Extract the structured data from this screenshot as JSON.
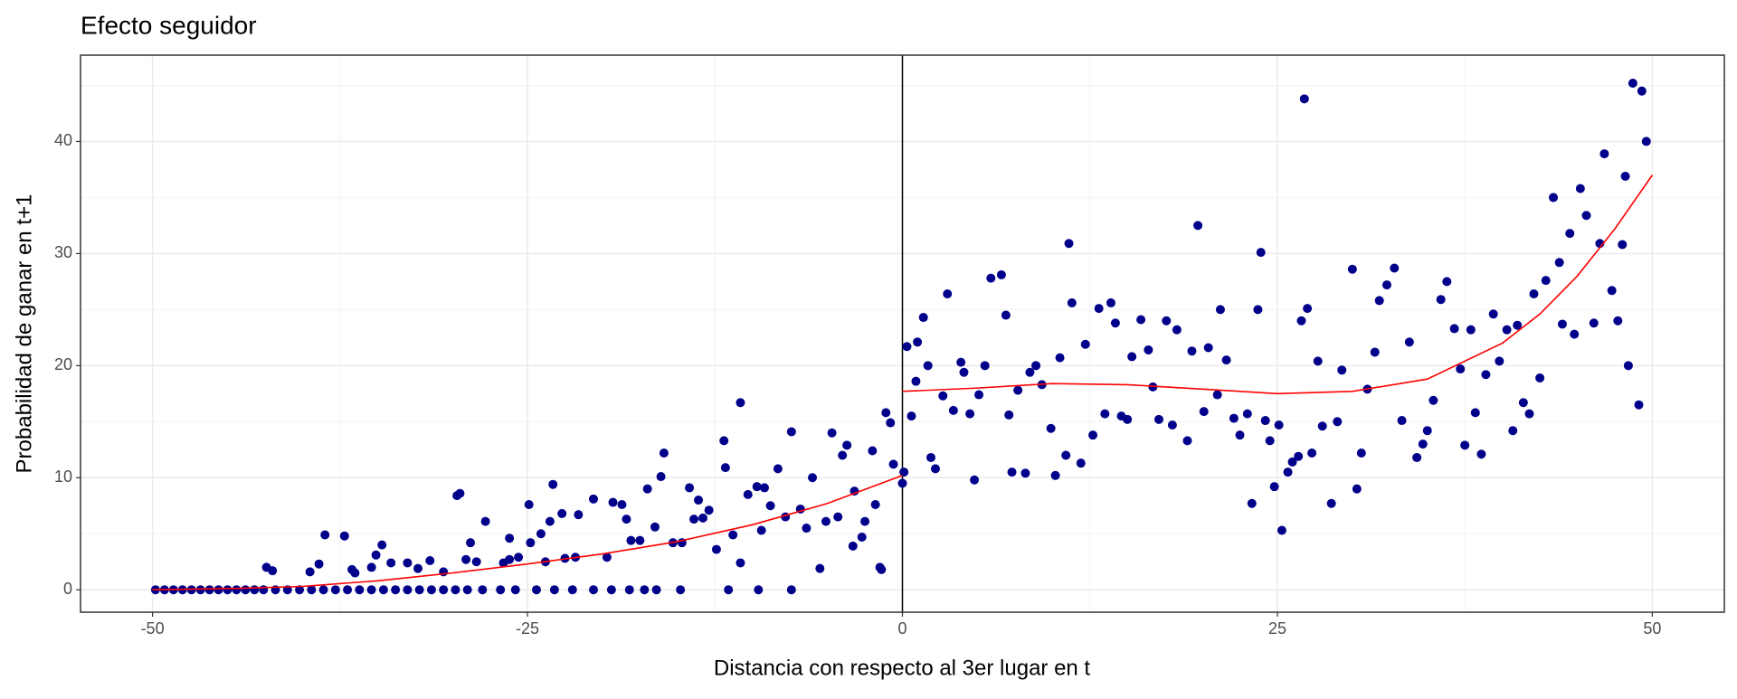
{
  "chart_data": {
    "type": "scatter",
    "title": "Efecto seguidor",
    "x_label": "Distancia con respecto al 3er lugar en t",
    "y_label": "Probabilidad de ganar en t+1",
    "xlim": [
      -54.8,
      54.8
    ],
    "ylim": [
      -2,
      47.7
    ],
    "xticks": [
      -50,
      -25,
      0,
      25,
      50
    ],
    "yticks": [
      0,
      10,
      20,
      30,
      40
    ],
    "xminor": [
      -37.5,
      -12.5,
      12.5,
      37.5
    ],
    "yminor": [
      5,
      15,
      25,
      35,
      45
    ],
    "grid": true,
    "vline": {
      "x": 0,
      "color": "#000000"
    },
    "series": [
      {
        "type": "scatter",
        "color": "#00008b",
        "x": [
          -49.8,
          -49.2,
          -48.6,
          -48.0,
          -47.4,
          -46.8,
          -46.2,
          -45.6,
          -45.0,
          -44.4,
          -43.8,
          -43.2,
          -42.6,
          -41.8,
          -41.0,
          -40.2,
          -39.4,
          -38.6,
          -37.8,
          -37.0,
          -36.2,
          -35.4,
          -34.6,
          -33.8,
          -33.0,
          -32.2,
          -31.4,
          -30.6,
          -29.8,
          -29.0,
          -28.0,
          -26.8,
          -25.8,
          -24.4,
          -23.2,
          -22.0,
          -20.6,
          -19.4,
          -18.2,
          -17.2,
          -16.4,
          -14.8,
          -11.6,
          -9.6,
          -7.4,
          -42.4,
          -42,
          -39.5,
          -38.9,
          -38.5,
          -37.2,
          -36.7,
          -36.5,
          -35.4,
          -34.7,
          -35.1,
          -34.1,
          -33,
          -32.3,
          -31.5,
          -30.6,
          -29.7,
          -29.5,
          -29.1,
          -28.8,
          -27.8,
          -26.6,
          -26.2,
          -25.6,
          -24.9,
          -24.8,
          -24.1,
          -23.8,
          -23.5,
          -23.3,
          -22.5,
          -21.8,
          -21.6,
          -20.6,
          -19.7,
          -19.3,
          -18.4,
          -18.1,
          -17.5,
          -16.5,
          -16.1,
          -15.9,
          -15.3,
          -14.7,
          -14.2,
          -13.9,
          -13.6,
          -12.9,
          -12.4,
          -11.9,
          -11.8,
          -11.3,
          -10.8,
          -10.8,
          -10.3,
          -9.7,
          -9.4,
          -8.8,
          -8.3,
          -7.8,
          -7.4,
          -6.8,
          -6.0,
          -5.5,
          -5.1,
          -4.7,
          -4.3,
          -4.0,
          -3.7,
          -3.2,
          -2.7,
          -2.5,
          -2.0,
          -1.8,
          -1.5,
          -1.1,
          -0.8,
          -0.6,
          -1.4,
          -3.3,
          -6.4,
          -9.2,
          -13.3,
          -17.0,
          -18.7,
          -22.7,
          -26.2,
          -28.4,
          0,
          0.1,
          0.3,
          0.6,
          0.9,
          1.0,
          1.4,
          1.7,
          1.9,
          2.2,
          2.7,
          3.0,
          3.4,
          3.9,
          4.1,
          4.5,
          4.8,
          5.1,
          5.5,
          5.9,
          6.6,
          6.9,
          7.1,
          7.3,
          7.7,
          8.2,
          8.5,
          8.9,
          9.3,
          9.9,
          10.2,
          10.5,
          10.9,
          11.1,
          11.3,
          11.9,
          12.2,
          12.7,
          13.1,
          13.5,
          13.9,
          14.2,
          14.6,
          15.0,
          15.3,
          15.9,
          16.4,
          16.7,
          17.1,
          17.6,
          18.0,
          18.3,
          19.0,
          19.3,
          19.7,
          20.1,
          20.4,
          21.0,
          21.2,
          21.6,
          22.1,
          22.5,
          23.0,
          23.3,
          23.7,
          23.9,
          24.2,
          24.5,
          24.8,
          25.1,
          25.3,
          25.7,
          26.0,
          26.4,
          26.6,
          26.8,
          27.0,
          27.3,
          27.7,
          28.0,
          28.6,
          29.0,
          29.3,
          30.0,
          30.3,
          30.6,
          31.0,
          31.5,
          31.8,
          32.3,
          32.8,
          33.3,
          33.8,
          34.3,
          34.7,
          35.0,
          35.4,
          35.9,
          36.3,
          36.8,
          37.2,
          37.5,
          37.9,
          38.2,
          38.6,
          38.9,
          39.4,
          39.8,
          40.3,
          40.7,
          41.0,
          41.4,
          41.8,
          42.1,
          42.5,
          42.9,
          43.4,
          43.8,
          44.0,
          44.5,
          44.8,
          45.2,
          45.6,
          46.1,
          46.5,
          46.8,
          47.3,
          47.7,
          48.0,
          48.2,
          48.4,
          48.7,
          49.1,
          49.3,
          49.6
        ],
        "values": [
          0,
          0,
          0,
          0,
          0,
          0,
          0,
          0,
          0,
          0,
          0,
          0,
          0,
          0,
          0,
          0,
          0,
          0,
          0,
          0,
          0,
          0,
          0,
          0,
          0,
          0,
          0,
          0,
          0,
          0,
          0,
          0,
          0,
          0,
          0,
          0,
          0,
          0,
          0,
          0,
          0,
          0,
          0,
          0,
          0,
          2.0,
          1.7,
          1.6,
          2.3,
          4.9,
          4.8,
          1.8,
          1.5,
          2.0,
          4.0,
          3.1,
          2.4,
          2.4,
          1.9,
          2.6,
          1.6,
          8.4,
          8.6,
          2.7,
          4.2,
          6.1,
          2.4,
          2.7,
          2.9,
          7.6,
          4.2,
          5.0,
          2.5,
          6.1,
          9.4,
          2.8,
          2.9,
          6.7,
          8.1,
          2.9,
          7.8,
          6.3,
          4.4,
          4.4,
          5.6,
          10.1,
          12.2,
          4.2,
          4.2,
          9.1,
          6.3,
          8.0,
          7.1,
          3.6,
          13.3,
          10.9,
          4.9,
          2.4,
          16.7,
          8.5,
          9.2,
          5.3,
          7.5,
          10.8,
          6.5,
          14.1,
          7.2,
          10.0,
          1.9,
          6.1,
          14.0,
          6.5,
          12.0,
          12.9,
          8.8,
          4.7,
          6.1,
          12.4,
          7.6,
          2.0,
          15.8,
          14.9,
          11.2,
          1.8,
          3.9,
          5.5,
          9.1,
          6.4,
          9.0,
          7.6,
          6.8,
          4.6,
          2.5,
          9.5,
          10.5,
          21.7,
          15.5,
          18.6,
          22.1,
          24.3,
          20.0,
          11.8,
          10.8,
          17.3,
          26.4,
          16.0,
          20.3,
          19.4,
          15.7,
          9.8,
          17.4,
          20.0,
          27.8,
          28.1,
          24.5,
          15.6,
          10.5,
          17.8,
          10.4,
          19.4,
          20.0,
          18.3,
          14.4,
          10.2,
          20.7,
          12.0,
          30.9,
          25.6,
          11.3,
          21.9,
          13.8,
          25.1,
          15.7,
          25.6,
          23.8,
          15.5,
          15.2,
          20.8,
          24.1,
          21.4,
          18.1,
          15.2,
          24.0,
          14.7,
          23.2,
          13.3,
          21.3,
          32.5,
          15.9,
          21.6,
          17.4,
          25.0,
          20.5,
          15.3,
          13.8,
          15.7,
          7.7,
          25.0,
          30.1,
          15.1,
          13.3,
          9.2,
          14.7,
          5.3,
          10.5,
          11.4,
          11.9,
          24.0,
          43.8,
          25.1,
          12.2,
          20.4,
          14.6,
          7.7,
          15.0,
          19.6,
          28.6,
          9.0,
          12.2,
          17.9,
          21.2,
          25.8,
          27.2,
          28.7,
          15.1,
          22.1,
          11.8,
          13.0,
          14.2,
          16.9,
          25.9,
          27.5,
          23.3,
          19.7,
          12.9,
          23.2,
          15.8,
          12.1,
          19.2,
          24.6,
          20.4,
          23.2,
          14.2,
          23.6,
          16.7,
          15.7,
          26.4,
          18.9,
          27.6,
          35.0,
          29.2,
          23.7,
          31.8,
          22.8,
          35.8,
          33.4,
          23.8,
          30.9,
          38.9,
          26.7,
          24.0,
          30.8,
          36.9,
          20.0,
          45.2,
          16.5,
          44.5,
          40.0
        ]
      },
      {
        "type": "line",
        "color": "#ff0000",
        "x": [
          -50,
          -45,
          -40,
          -35,
          -30,
          -25,
          -20,
          -15,
          -10,
          -5,
          0
        ],
        "values": [
          0,
          0.1,
          0.3,
          0.8,
          1.5,
          2.3,
          3.2,
          4.3,
          5.8,
          7.7,
          10.2
        ]
      },
      {
        "type": "line",
        "color": "#ff0000",
        "x": [
          0,
          5,
          10,
          15,
          20,
          25,
          30,
          35,
          40,
          42.5,
          45,
          47.5,
          50
        ],
        "values": [
          17.7,
          18.0,
          18.4,
          18.3,
          17.9,
          17.5,
          17.7,
          18.8,
          22.0,
          24.6,
          28.0,
          32.2,
          37.0
        ]
      }
    ]
  }
}
